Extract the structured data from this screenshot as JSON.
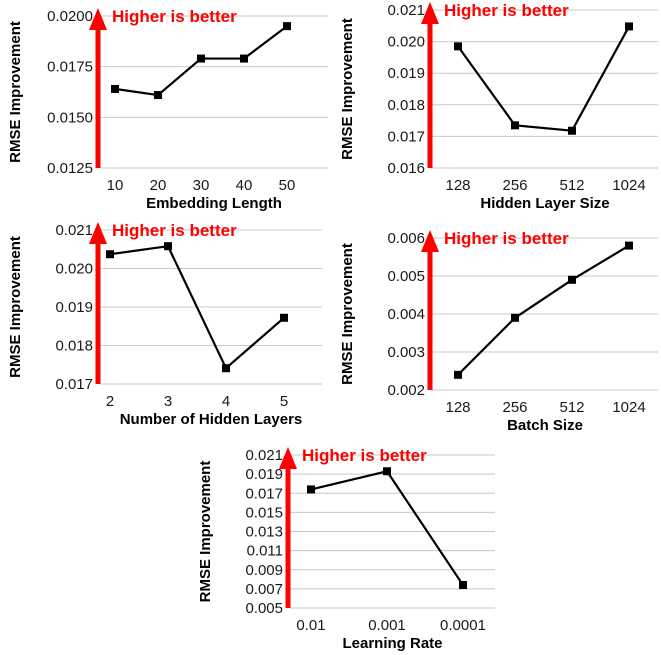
{
  "colors": {
    "line": "#000000",
    "arrow": "#ff0000",
    "annotation": "#ff0000",
    "gridline": "#c8c8c8"
  },
  "chart_data": [
    {
      "type": "line",
      "xlabel": "Embedding Length",
      "ylabel": "RMSE Improvement",
      "categories": [
        "10",
        "20",
        "30",
        "40",
        "50"
      ],
      "series": [
        {
          "values": [
            0.0164,
            0.0161,
            0.0179,
            0.0179,
            0.0195
          ]
        }
      ],
      "ylim": [
        0.0125,
        0.02
      ],
      "yticks": [
        0.0125,
        0.015,
        0.0175,
        0.02
      ],
      "ytick_labels": [
        "0.0125",
        "0.0150",
        "0.0175",
        "0.0200"
      ],
      "annotation": "Higher is better",
      "grid": "horizontal"
    },
    {
      "type": "line",
      "xlabel": "Hidden Layer Size",
      "ylabel": "RMSE Improvement",
      "categories": [
        "128",
        "256",
        "512",
        "1024"
      ],
      "series": [
        {
          "values": [
            0.01985,
            0.01735,
            0.01718,
            0.02048
          ]
        }
      ],
      "ylim": [
        0.016,
        0.021
      ],
      "yticks": [
        0.016,
        0.017,
        0.018,
        0.019,
        0.02,
        0.021
      ],
      "ytick_labels": [
        "0.016",
        "0.017",
        "0.018",
        "0.019",
        "0.020",
        "0.021"
      ],
      "annotation": "Higher is better",
      "grid": "horizontal"
    },
    {
      "type": "line",
      "xlabel": "Number of Hidden Layers",
      "ylabel": "RMSE Improvement",
      "categories": [
        "2",
        "3",
        "4",
        "5"
      ],
      "series": [
        {
          "values": [
            0.02037,
            0.02058,
            0.01741,
            0.01872
          ]
        }
      ],
      "ylim": [
        0.017,
        0.021
      ],
      "yticks": [
        0.017,
        0.018,
        0.019,
        0.02,
        0.021
      ],
      "ytick_labels": [
        "0.017",
        "0.018",
        "0.019",
        "0.020",
        "0.021"
      ],
      "annotation": "Higher is better",
      "grid": "horizontal"
    },
    {
      "type": "line",
      "xlabel": "Batch Size",
      "ylabel": "RMSE Improvement",
      "categories": [
        "128",
        "256",
        "512",
        "1024"
      ],
      "series": [
        {
          "values": [
            0.0024,
            0.0039,
            0.0049,
            0.0058
          ]
        }
      ],
      "ylim": [
        0.002,
        0.006
      ],
      "yticks": [
        0.002,
        0.003,
        0.004,
        0.005,
        0.006
      ],
      "ytick_labels": [
        "0.002",
        "0.003",
        "0.004",
        "0.005",
        "0.006"
      ],
      "annotation": "Higher is better",
      "grid": "horizontal"
    },
    {
      "type": "line",
      "xlabel": "Learning Rate",
      "ylabel": "RMSE Improvement",
      "categories": [
        "0.01",
        "0.001",
        "0.0001"
      ],
      "series": [
        {
          "values": [
            0.0174,
            0.0193,
            0.0074
          ]
        }
      ],
      "ylim": [
        0.005,
        0.021
      ],
      "yticks": [
        0.005,
        0.007,
        0.009,
        0.011,
        0.013,
        0.015,
        0.017,
        0.019,
        0.021
      ],
      "ytick_labels": [
        "0.005",
        "0.007",
        "0.009",
        "0.011",
        "0.013",
        "0.015",
        "0.017",
        "0.019",
        "0.021"
      ],
      "annotation": "Higher is better",
      "grid": "horizontal"
    }
  ]
}
